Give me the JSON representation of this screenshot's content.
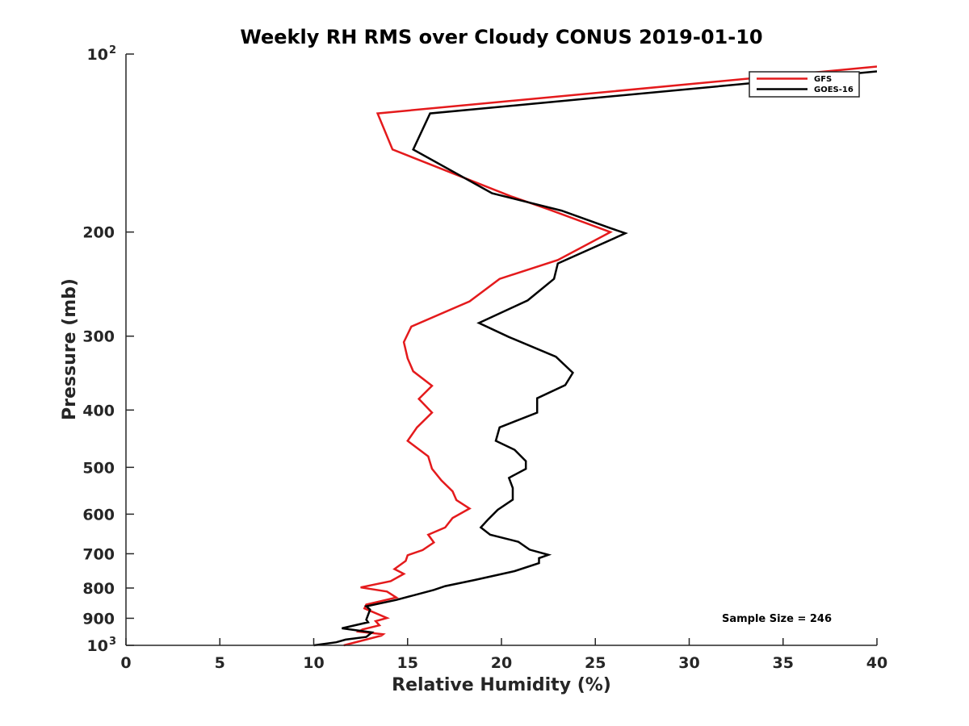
{
  "chart_data": {
    "type": "line",
    "title": "Weekly RH RMS over Cloudy CONUS 2019-01-10",
    "xlabel": "Relative Humidity (%)",
    "ylabel": "Pressure (mb)",
    "xlim": [
      0,
      40
    ],
    "ylim": [
      100,
      1000
    ],
    "yscale": "log",
    "yreverse": true,
    "grid": false,
    "legend_position": "top-right",
    "x_ticks": [
      {
        "value": 0,
        "label": "0"
      },
      {
        "value": 5,
        "label": "5"
      },
      {
        "value": 10,
        "label": "10"
      },
      {
        "value": 15,
        "label": "15"
      },
      {
        "value": 20,
        "label": "20"
      },
      {
        "value": 25,
        "label": "25"
      },
      {
        "value": 30,
        "label": "30"
      },
      {
        "value": 35,
        "label": "35"
      },
      {
        "value": 40,
        "label": "40"
      }
    ],
    "y_ticks": [
      {
        "value": 100,
        "base": "10",
        "exp": "2"
      },
      {
        "value": 200,
        "label": "200"
      },
      {
        "value": 300,
        "label": "300"
      },
      {
        "value": 400,
        "label": "400"
      },
      {
        "value": 500,
        "label": "500"
      },
      {
        "value": 600,
        "label": "600"
      },
      {
        "value": 700,
        "label": "700"
      },
      {
        "value": 800,
        "label": "800"
      },
      {
        "value": 900,
        "label": "900"
      },
      {
        "value": 1000,
        "base": "10",
        "exp": "3"
      }
    ],
    "annotation": "Sample Size = 246",
    "series": [
      {
        "name": "GFS",
        "color": "#e41a1c",
        "points": [
          [
            40,
            105
          ],
          [
            13.4,
            126
          ],
          [
            14.2,
            145
          ],
          [
            20.5,
            174
          ],
          [
            22.5,
            183
          ],
          [
            25.8,
            200
          ],
          [
            23.0,
            223
          ],
          [
            19.9,
            240
          ],
          [
            18.3,
            262
          ],
          [
            15.2,
            289
          ],
          [
            14.8,
            307
          ],
          [
            15.0,
            327
          ],
          [
            15.3,
            344
          ],
          [
            16.3,
            364
          ],
          [
            15.6,
            383
          ],
          [
            16.3,
            404
          ],
          [
            15.5,
            428
          ],
          [
            15.0,
            451
          ],
          [
            16.1,
            479
          ],
          [
            16.3,
            503
          ],
          [
            16.8,
            526
          ],
          [
            17.4,
            549
          ],
          [
            17.6,
            568
          ],
          [
            18.3,
            587
          ],
          [
            17.4,
            609
          ],
          [
            17.0,
            632
          ],
          [
            16.1,
            650
          ],
          [
            16.4,
            670
          ],
          [
            15.8,
            690
          ],
          [
            15.0,
            704
          ],
          [
            14.9,
            720
          ],
          [
            14.3,
            743
          ],
          [
            14.8,
            757
          ],
          [
            14.1,
            779
          ],
          [
            12.5,
            798
          ],
          [
            13.9,
            811
          ],
          [
            14.4,
            830
          ],
          [
            12.8,
            853
          ],
          [
            12.7,
            866
          ],
          [
            13.9,
            899
          ],
          [
            13.3,
            910
          ],
          [
            13.5,
            925
          ],
          [
            12.6,
            940
          ],
          [
            12.4,
            948
          ],
          [
            13.7,
            958
          ],
          [
            13.6,
            963
          ],
          [
            11.6,
            1000
          ]
        ]
      },
      {
        "name": "GOES-16",
        "color": "#000000",
        "points": [
          [
            40,
            107
          ],
          [
            16.2,
            126
          ],
          [
            15.3,
            145
          ],
          [
            19.5,
            172
          ],
          [
            23.2,
            184
          ],
          [
            25.8,
            197
          ],
          [
            26.6,
            201
          ],
          [
            23.0,
            226
          ],
          [
            22.8,
            240
          ],
          [
            21.4,
            261
          ],
          [
            18.8,
            285
          ],
          [
            20.4,
            301
          ],
          [
            22.9,
            325
          ],
          [
            23.8,
            346
          ],
          [
            23.4,
            363
          ],
          [
            21.9,
            382
          ],
          [
            21.9,
            404
          ],
          [
            19.9,
            428
          ],
          [
            19.7,
            451
          ],
          [
            20.7,
            467
          ],
          [
            21.3,
            488
          ],
          [
            21.3,
            503
          ],
          [
            20.4,
            521
          ],
          [
            20.6,
            542
          ],
          [
            20.6,
            567
          ],
          [
            19.8,
            590
          ],
          [
            19.3,
            612
          ],
          [
            18.9,
            632
          ],
          [
            19.4,
            650
          ],
          [
            20.9,
            668
          ],
          [
            21.5,
            689
          ],
          [
            22.5,
            703
          ],
          [
            22.0,
            712
          ],
          [
            22.0,
            726
          ],
          [
            20.7,
            749
          ],
          [
            18.6,
            775
          ],
          [
            17.0,
            794
          ],
          [
            16.4,
            806
          ],
          [
            14.4,
            838
          ],
          [
            12.8,
            859
          ],
          [
            13.0,
            870
          ],
          [
            12.8,
            905
          ],
          [
            12.9,
            914
          ],
          [
            11.5,
            936
          ],
          [
            13.1,
            951
          ],
          [
            12.8,
            968
          ],
          [
            11.7,
            978
          ],
          [
            11.2,
            988
          ],
          [
            10.0,
            1000
          ]
        ]
      }
    ]
  }
}
